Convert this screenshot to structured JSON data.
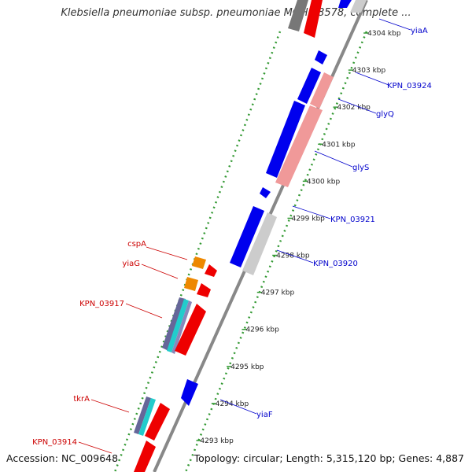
{
  "header": {
    "title": "Klebsiella pneumoniae subsp. pneumoniae MGH 78578, complete ..."
  },
  "footer": {
    "accession": "Accession: NC_009648",
    "summary": "Topology: circular; Length: 5,315,120 bp; Genes: 4,887"
  },
  "colors": {
    "forward_gene": "#0000ee",
    "reverse_gene": "#ee0000",
    "forward_cds_tint": "#cccccc",
    "reverse_cds_tint": "#f09999",
    "forward_label": "#0000cc",
    "reverse_label": "#cc0000",
    "tick_marks": "#339933",
    "backbone": "#888888",
    "orange_gene": "#ee8800",
    "cyan_gene": "#22cccc",
    "purple_gene": "#666699"
  },
  "scale": {
    "unit": "kbp",
    "ticks": [
      "4293 kbp",
      "4294 kbp",
      "4295 kbp",
      "4296 kbp",
      "4297 kbp",
      "4298 kbp",
      "4299 kbp",
      "4300 kbp",
      "4301 kbp",
      "4302 kbp",
      "4303 kbp",
      "4304 kbp"
    ]
  },
  "genes": {
    "forward_labels": [
      "yiaA",
      "KPN_03924",
      "glyQ",
      "glyS",
      "KPN_03921",
      "KPN_03920",
      "yiaF"
    ],
    "reverse_labels": [
      "cspA",
      "yiaG",
      "KPN_03917",
      "tkrA",
      "KPN_03914"
    ]
  }
}
